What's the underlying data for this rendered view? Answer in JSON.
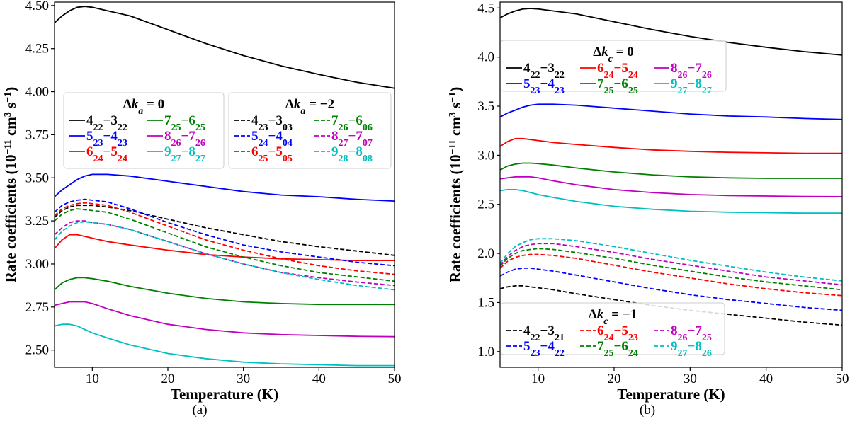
{
  "figure": {
    "captions": [
      "(a)",
      "(b)"
    ]
  },
  "chart_data": [
    {
      "id": "a",
      "type": "line",
      "caption": "(a)",
      "xlabel": "Temperature (K)",
      "ylabel": "Rate coefficients (10^-11 cm^3 s^-1)",
      "xlim": [
        5,
        50
      ],
      "ylim": [
        2.4,
        4.52
      ],
      "xticks": [
        10,
        20,
        30,
        40,
        50
      ],
      "yticks": [
        2.5,
        2.75,
        3.0,
        3.25,
        3.5,
        3.75,
        4.0,
        4.25,
        4.5
      ],
      "ytick_labels": [
        "2.50",
        "2.75",
        "3.00",
        "3.25",
        "3.50",
        "3.75",
        "4.00",
        "4.25",
        "4.50"
      ],
      "grid": false,
      "x": [
        5,
        6,
        7,
        8,
        9,
        10,
        12,
        15,
        20,
        25,
        30,
        35,
        40,
        45,
        50
      ],
      "legends": [
        {
          "title": "Δk_a = 0",
          "placement": "upper-left",
          "ncol": 2,
          "entries": [
            "4_22-3_22",
            "5_23-4_23",
            "6_24-5_24",
            "7_25-6_25",
            "8_26-7_26",
            "9_27-8_27"
          ]
        },
        {
          "title": "Δk_a = −2",
          "placement": "upper-right",
          "ncol": 2,
          "entries": [
            "4_23-3_03",
            "5_24-4_04",
            "6_25-5_05",
            "7_26-6_06",
            "8_27-7_07",
            "9_28-8_08"
          ]
        }
      ],
      "series": [
        {
          "name": "4_22-3_22",
          "color": "#000000",
          "style": "solid",
          "values": [
            4.4,
            4.44,
            4.47,
            4.49,
            4.495,
            4.49,
            4.47,
            4.44,
            4.36,
            4.28,
            4.21,
            4.15,
            4.1,
            4.055,
            4.02
          ]
        },
        {
          "name": "5_23-4_23",
          "color": "#0000ff",
          "style": "solid",
          "values": [
            3.39,
            3.43,
            3.46,
            3.49,
            3.51,
            3.52,
            3.52,
            3.51,
            3.48,
            3.45,
            3.42,
            3.4,
            3.39,
            3.375,
            3.365
          ]
        },
        {
          "name": "6_24-5_24",
          "color": "#ff0000",
          "style": "solid",
          "values": [
            3.09,
            3.14,
            3.17,
            3.17,
            3.16,
            3.15,
            3.13,
            3.11,
            3.08,
            3.055,
            3.04,
            3.03,
            3.025,
            3.02,
            3.02
          ]
        },
        {
          "name": "7_25-6_25",
          "color": "#008000",
          "style": "solid",
          "values": [
            2.85,
            2.89,
            2.91,
            2.92,
            2.92,
            2.915,
            2.9,
            2.87,
            2.83,
            2.8,
            2.78,
            2.77,
            2.765,
            2.765,
            2.765
          ]
        },
        {
          "name": "8_26-7_26",
          "color": "#bf00bf",
          "style": "solid",
          "values": [
            2.76,
            2.77,
            2.78,
            2.78,
            2.78,
            2.77,
            2.74,
            2.7,
            2.65,
            2.62,
            2.6,
            2.59,
            2.585,
            2.58,
            2.578
          ]
        },
        {
          "name": "9_27-8_27",
          "color": "#00bfbf",
          "style": "solid",
          "values": [
            2.64,
            2.65,
            2.65,
            2.64,
            2.62,
            2.6,
            2.57,
            2.53,
            2.48,
            2.45,
            2.43,
            2.42,
            2.415,
            2.41,
            2.41
          ]
        },
        {
          "name": "4_23-3_03",
          "color": "#000000",
          "style": "dashed",
          "values": [
            3.27,
            3.31,
            3.33,
            3.34,
            3.34,
            3.34,
            3.33,
            3.31,
            3.26,
            3.21,
            3.17,
            3.13,
            3.1,
            3.075,
            3.05
          ]
        },
        {
          "name": "5_24-4_04",
          "color": "#0000ff",
          "style": "dashed",
          "values": [
            3.3,
            3.34,
            3.36,
            3.37,
            3.375,
            3.37,
            3.36,
            3.32,
            3.24,
            3.17,
            3.11,
            3.07,
            3.04,
            3.01,
            2.99
          ]
        },
        {
          "name": "6_25-5_05",
          "color": "#ff0000",
          "style": "dashed",
          "values": [
            3.28,
            3.32,
            3.34,
            3.35,
            3.355,
            3.35,
            3.34,
            3.3,
            3.22,
            3.14,
            3.08,
            3.03,
            2.99,
            2.96,
            2.94
          ]
        },
        {
          "name": "7_26-6_06",
          "color": "#008000",
          "style": "dashed",
          "values": [
            3.25,
            3.29,
            3.31,
            3.32,
            3.315,
            3.31,
            3.3,
            3.26,
            3.18,
            3.1,
            3.04,
            2.99,
            2.95,
            2.925,
            2.9
          ]
        },
        {
          "name": "8_27-7_07",
          "color": "#bf00bf",
          "style": "dashed",
          "values": [
            3.17,
            3.21,
            3.24,
            3.25,
            3.25,
            3.24,
            3.23,
            3.2,
            3.13,
            3.06,
            3.0,
            2.95,
            2.92,
            2.895,
            2.875
          ]
        },
        {
          "name": "9_28-8_08",
          "color": "#00bfbf",
          "style": "dashed",
          "values": [
            3.14,
            3.19,
            3.22,
            3.24,
            3.245,
            3.24,
            3.23,
            3.2,
            3.13,
            3.06,
            3.0,
            2.95,
            2.91,
            2.875,
            2.85
          ]
        }
      ]
    },
    {
      "id": "b",
      "type": "line",
      "caption": "(b)",
      "xlabel": "Temperature (K)",
      "ylabel": "Rate coefficients (10^-11 cm^3 s^-1)",
      "xlim": [
        5,
        50
      ],
      "ylim": [
        0.84,
        4.56
      ],
      "xticks": [
        10,
        20,
        30,
        40,
        50
      ],
      "yticks": [
        1.0,
        1.5,
        2.0,
        2.5,
        3.0,
        3.5,
        4.0,
        4.5
      ],
      "ytick_labels": [
        "1.0",
        "1.5",
        "2.0",
        "2.5",
        "3.0",
        "3.5",
        "4.0",
        "4.5"
      ],
      "grid": false,
      "x": [
        5,
        6,
        7,
        8,
        9,
        10,
        12,
        15,
        20,
        25,
        30,
        35,
        40,
        45,
        50
      ],
      "legends": [
        {
          "title": "Δk_c = 0",
          "placement": "upper-left",
          "ncol": 3,
          "entries": [
            "4_22-3_22",
            "5_23-4_23",
            "6_24-5_24",
            "7_25-6_25",
            "8_26-7_26",
            "9_27-8_27"
          ]
        },
        {
          "title": "Δk_c = −1",
          "placement": "lower-left",
          "ncol": 3,
          "entries": [
            "4_22-3_21",
            "5_23-4_22",
            "6_24-5_23",
            "7_25-6_24",
            "8_26-7_25",
            "9_27-8_26"
          ]
        }
      ],
      "series": [
        {
          "name": "4_22-3_22",
          "color": "#000000",
          "style": "solid",
          "values": [
            4.4,
            4.44,
            4.47,
            4.49,
            4.495,
            4.49,
            4.47,
            4.44,
            4.36,
            4.28,
            4.21,
            4.15,
            4.1,
            4.055,
            4.02
          ]
        },
        {
          "name": "5_23-4_23",
          "color": "#0000ff",
          "style": "solid",
          "values": [
            3.39,
            3.43,
            3.46,
            3.49,
            3.51,
            3.52,
            3.52,
            3.51,
            3.48,
            3.45,
            3.42,
            3.4,
            3.39,
            3.375,
            3.365
          ]
        },
        {
          "name": "6_24-5_24",
          "color": "#ff0000",
          "style": "solid",
          "values": [
            3.09,
            3.14,
            3.17,
            3.17,
            3.16,
            3.15,
            3.13,
            3.11,
            3.08,
            3.055,
            3.04,
            3.03,
            3.025,
            3.02,
            3.02
          ]
        },
        {
          "name": "7_25-6_25",
          "color": "#008000",
          "style": "solid",
          "values": [
            2.85,
            2.89,
            2.91,
            2.92,
            2.92,
            2.915,
            2.9,
            2.87,
            2.83,
            2.8,
            2.78,
            2.77,
            2.765,
            2.765,
            2.765
          ]
        },
        {
          "name": "8_26-7_26",
          "color": "#bf00bf",
          "style": "solid",
          "values": [
            2.76,
            2.77,
            2.78,
            2.78,
            2.78,
            2.77,
            2.74,
            2.7,
            2.65,
            2.62,
            2.6,
            2.59,
            2.585,
            2.58,
            2.578
          ]
        },
        {
          "name": "9_27-8_27",
          "color": "#00bfbf",
          "style": "solid",
          "values": [
            2.64,
            2.65,
            2.65,
            2.64,
            2.62,
            2.6,
            2.57,
            2.53,
            2.48,
            2.45,
            2.43,
            2.42,
            2.415,
            2.41,
            2.41
          ]
        },
        {
          "name": "4_22-3_21",
          "color": "#000000",
          "style": "dashed",
          "values": [
            1.64,
            1.66,
            1.67,
            1.67,
            1.66,
            1.65,
            1.63,
            1.59,
            1.53,
            1.47,
            1.42,
            1.38,
            1.34,
            1.3,
            1.27
          ]
        },
        {
          "name": "5_23-4_22",
          "color": "#0000ff",
          "style": "dashed",
          "values": [
            1.77,
            1.81,
            1.84,
            1.85,
            1.85,
            1.84,
            1.82,
            1.78,
            1.71,
            1.64,
            1.58,
            1.53,
            1.49,
            1.45,
            1.42
          ]
        },
        {
          "name": "6_24-5_23",
          "color": "#ff0000",
          "style": "dashed",
          "values": [
            1.85,
            1.92,
            1.96,
            1.98,
            1.99,
            1.99,
            1.98,
            1.95,
            1.88,
            1.81,
            1.75,
            1.69,
            1.64,
            1.6,
            1.57
          ]
        },
        {
          "name": "7_25-6_24",
          "color": "#008000",
          "style": "dashed",
          "values": [
            1.87,
            1.95,
            2.0,
            2.03,
            2.04,
            2.05,
            2.04,
            2.01,
            1.95,
            1.88,
            1.82,
            1.76,
            1.71,
            1.67,
            1.63
          ]
        },
        {
          "name": "8_26-7_25",
          "color": "#bf00bf",
          "style": "dashed",
          "values": [
            1.88,
            1.97,
            2.03,
            2.07,
            2.09,
            2.1,
            2.1,
            2.07,
            2.01,
            1.94,
            1.88,
            1.82,
            1.76,
            1.72,
            1.68
          ]
        },
        {
          "name": "9_27-8_26",
          "color": "#00bfbf",
          "style": "dashed",
          "values": [
            1.9,
            2.0,
            2.07,
            2.11,
            2.14,
            2.15,
            2.15,
            2.13,
            2.07,
            2.0,
            1.93,
            1.87,
            1.81,
            1.76,
            1.72
          ]
        }
      ]
    }
  ]
}
